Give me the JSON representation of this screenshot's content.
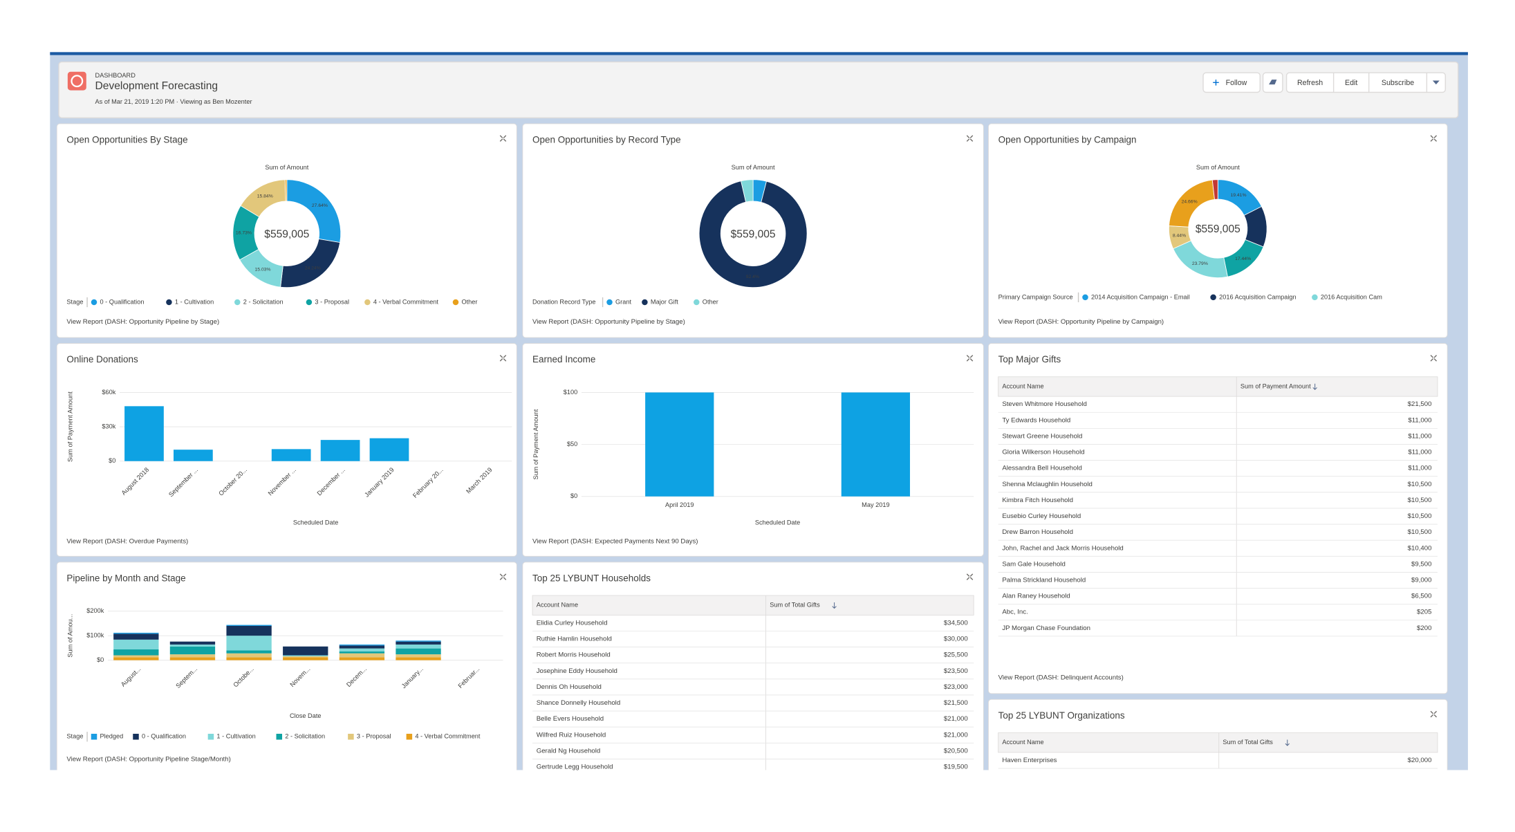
{
  "header": {
    "label": "DASHBOARD",
    "title": "Development Forecasting",
    "subtitle": "As of Mar 21, 2019 1:20 PM · Viewing as Ben Mozenter",
    "buttons": [
      "Follow",
      "Refresh",
      "Edit",
      "Subscribe"
    ]
  },
  "widgets": [
    {
      "title": "Open Opportunities By Stage",
      "link": "View Report (DASH: Opportunity Pipeline by Stage)",
      "chart": {
        "type": "donut",
        "axis_title": "Sum of Amount",
        "total": "$559,005",
        "values": [
          27.64,
          24.24,
          15.03,
          16.73,
          15.84,
          0.52
        ],
        "value_labels": [
          "27.64%",
          "24.24%",
          "15.03%",
          "16.73%",
          "15.84%",
          null
        ],
        "colors": [
          "#1b9de2",
          "#16325c",
          "#7fd8da",
          "#0fa3a3",
          "#e2c77b",
          "#e8a01c"
        ],
        "legend_title": "Stage",
        "legend": [
          {
            "name": "0 - Qualification",
            "color": "#1b9de2"
          },
          {
            "name": "1 - Cultivation",
            "color": "#16325c"
          },
          {
            "name": "2 - Solicitation",
            "color": "#7fd8da"
          },
          {
            "name": "3 - Proposal",
            "color": "#0fa3a3"
          },
          {
            "name": "4 - Verbal Commitment",
            "color": "#e2c77b"
          },
          {
            "name": "Other",
            "color": "#e8a01c"
          }
        ]
      }
    },
    {
      "title": "Open Opportunities by Record Type",
      "link": "View Report (DASH: Opportunity Pipeline by Stage)",
      "chart": {
        "type": "donut",
        "axis_title": "Sum of Amount",
        "total": "$559,005",
        "values": [
          4.0,
          92.4,
          3.6
        ],
        "value_labels": [
          null,
          "92.4%",
          null
        ],
        "colors": [
          "#1b9de2",
          "#16325c",
          "#7fd8da"
        ],
        "legend_title": "Donation Record Type",
        "legend": [
          {
            "name": "Grant",
            "color": "#1b9de2"
          },
          {
            "name": "Major Gift",
            "color": "#16325c"
          },
          {
            "name": "Other",
            "color": "#7fd8da"
          }
        ]
      }
    },
    {
      "title": "Open Opportunities by Campaign",
      "link": "View Report (DASH: Opportunity Pipeline by Campaign)",
      "chart": {
        "type": "donut",
        "axis_title": "Sum of Amount",
        "total": "$559,005",
        "values": [
          19.41,
          15,
          17.44,
          23.79,
          8.44,
          24.66,
          2
        ],
        "value_labels": [
          "19.41%",
          null,
          "17.44%",
          "23.79%",
          "8.44%",
          "24.66%",
          null
        ],
        "colors": [
          "#1b9de2",
          "#16325c",
          "#0fa3a3",
          "#7fd8da",
          "#e2c77b",
          "#e8a01c",
          "#c23934"
        ],
        "legend_title": "Primary Campaign Source",
        "legend": [
          {
            "name": "2014 Acquisition Campaign - Email",
            "color": "#1b9de2"
          },
          {
            "name": "2016 Acquisition Campaign",
            "color": "#16325c"
          },
          {
            "name": "2016 Acquisition Cam",
            "color": "#7fd8da"
          }
        ]
      }
    },
    {
      "title": "Online Donations",
      "link": "View Report (DASH: Overdue Payments)",
      "chart": {
        "type": "bar",
        "y_title": "Sum of Payment Amount",
        "x_title": "Scheduled Date",
        "categories": [
          "August 2018",
          "September ...",
          "October 20...",
          "November ...",
          "December ...",
          "January 2019",
          "February 20...",
          "March 2019"
        ],
        "values": [
          48000,
          10000,
          0,
          10500,
          18500,
          20000,
          0,
          0
        ],
        "color": "#0ea2e3",
        "ylim": [
          0,
          60000
        ],
        "yticks": [
          {
            "value": 0,
            "label": "$0"
          },
          {
            "value": 30000,
            "label": "$30k"
          },
          {
            "value": 60000,
            "label": "$60k"
          }
        ],
        "rotate_labels": true
      }
    },
    {
      "title": "Earned Income",
      "link": "View Report (DASH: Expected Payments Next 90 Days)",
      "chart": {
        "type": "bar",
        "y_title": "Sum of Payment Amount",
        "x_title": "Scheduled Date",
        "categories": [
          "April 2019",
          "May 2019"
        ],
        "values": [
          100,
          100
        ],
        "color": "#0ea2e3",
        "ylim": [
          0,
          100
        ],
        "yticks": [
          {
            "value": 0,
            "label": "$0"
          },
          {
            "value": 50,
            "label": "$50"
          },
          {
            "value": 100,
            "label": "$100"
          }
        ],
        "rotate_labels": false
      }
    },
    {
      "title": "Top Major Gifts",
      "link": "View Report (DASH: Delinquent Accounts)",
      "table": {
        "columns": [
          "Account Name",
          "Sum of Payment Amount"
        ],
        "rows": [
          [
            "Steven Whitmore Household",
            "$21,500"
          ],
          [
            "Ty Edwards Household",
            "$11,000"
          ],
          [
            "Stewart Greene Household",
            "$11,000"
          ],
          [
            "Gloria Wilkerson Household",
            "$11,000"
          ],
          [
            "Alessandra Bell Household",
            "$11,000"
          ],
          [
            "Shenna Mclaughlin Household",
            "$10,500"
          ],
          [
            "Kimbra Fitch Household",
            "$10,500"
          ],
          [
            "Eusebio Curley Household",
            "$10,500"
          ],
          [
            "Drew Barron Household",
            "$10,500"
          ],
          [
            "John, Rachel and Jack Morris Household",
            "$10,400"
          ],
          [
            "Sam Gale Household",
            "$9,500"
          ],
          [
            "Palma Strickland Household",
            "$9,000"
          ],
          [
            "Alan Raney Household",
            "$6,500"
          ],
          [
            "Abc, Inc.",
            "$205"
          ],
          [
            "JP Morgan Chase Foundation",
            "$200"
          ]
        ]
      }
    },
    {
      "title": "Pipeline by Month and Stage",
      "link": "View Report (DASH: Opportunity Pipeline Stage/Month)",
      "chart": {
        "type": "stacked_bar",
        "y_title": "Sum of Amou...",
        "x_title": "Close Date",
        "categories": [
          "August...",
          "Septem...",
          "Octobe...",
          "Novem...",
          "Decem...",
          "January...",
          "Februar..."
        ],
        "ylim": [
          0,
          200000
        ],
        "yticks": [
          {
            "value": 0,
            "label": "$0"
          },
          {
            "value": 100000,
            "label": "$100k"
          },
          {
            "value": 200000,
            "label": "$200k"
          }
        ],
        "legend_title": "Stage",
        "series": [
          {
            "name": "4 - Verbal Commitment",
            "color": "#e8a01c",
            "values": [
              12000,
              12000,
              12000,
              12000,
              12000,
              12000,
              0
            ]
          },
          {
            "name": "3 - Proposal",
            "color": "#e2c77b",
            "values": [
              8000,
              12000,
              16000,
              4000,
              16000,
              12000,
              0
            ]
          },
          {
            "name": "2 - Solicitation",
            "color": "#0fa3a3",
            "values": [
              24000,
              32000,
              12000,
              0,
              8000,
              24000,
              0
            ]
          },
          {
            "name": "1 - Cultivation",
            "color": "#7fd8da",
            "values": [
              40000,
              8000,
              60000,
              4000,
              12000,
              16000,
              0
            ]
          },
          {
            "name": "0 - Qualification",
            "color": "#16325c",
            "values": [
              24000,
              12000,
              40000,
              36000,
              12000,
              12000,
              0
            ]
          },
          {
            "name": "Pledged",
            "color": "#1b9de2",
            "values": [
              4000,
              0,
              4000,
              0,
              4000,
              4000,
              0
            ]
          }
        ]
      }
    },
    {
      "title": "Top 25 LYBUNT Households",
      "table": {
        "columns": [
          "Account Name",
          "Sum of Total Gifts"
        ],
        "rows": [
          [
            "Elidia Curley Household",
            "$34,500"
          ],
          [
            "Ruthie Hamlin Household",
            "$30,000"
          ],
          [
            "Robert Morris Household",
            "$25,500"
          ],
          [
            "Josephine Eddy Household",
            "$23,500"
          ],
          [
            "Dennis Oh Household",
            "$23,000"
          ],
          [
            "Shance Donnelly Household",
            "$21,500"
          ],
          [
            "Belle Evers Household",
            "$21,000"
          ],
          [
            "Wilfred Ruiz Household",
            "$21,000"
          ],
          [
            "Gerald Ng Household",
            "$20,500"
          ],
          [
            "Gertrude Legg Household",
            "$19,500"
          ]
        ]
      }
    },
    {
      "title": "Top 25 LYBUNT Organizations",
      "table": {
        "columns": [
          "Account Name",
          "Sum of Total Gifts"
        ],
        "rows": [
          [
            "Haven Enterprises",
            "$20,000"
          ]
        ]
      }
    }
  ]
}
